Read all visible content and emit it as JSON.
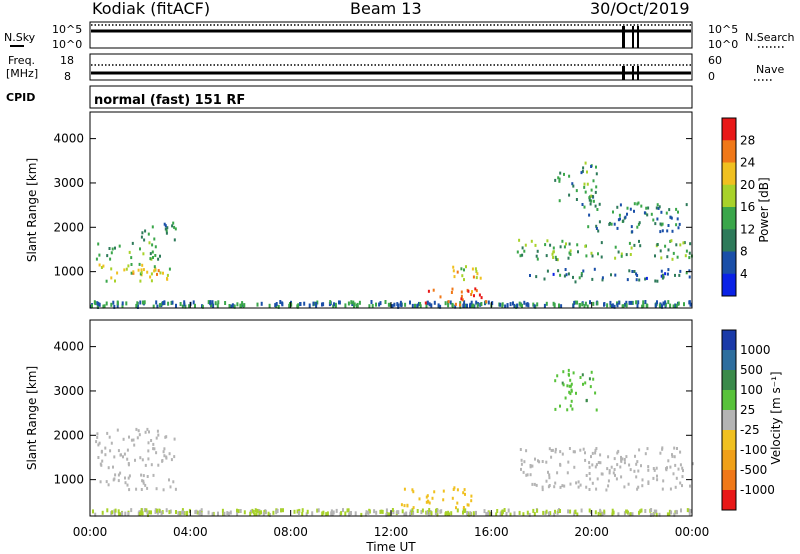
{
  "header": {
    "radar": "Kodiak (fitACF)",
    "beam": "Beam 13",
    "date": "30/Oct/2019"
  },
  "noise_panel": {
    "left_label": "N.Sky",
    "left_top": "10^5",
    "left_bottom": "10^0",
    "right_top": "10^5",
    "right_bottom": "10^0",
    "right_label": "N.Search"
  },
  "freq_panel": {
    "left_label_1": "Freq.",
    "left_label_2": "[MHz]",
    "left_top": "18",
    "left_bottom": "8",
    "right_top": "60",
    "right_bottom": "0",
    "right_label": "Nave"
  },
  "cpid": {
    "label": "CPID",
    "value": "normal (fast) 151 RF"
  },
  "x_axis": {
    "label": "Time UT",
    "ticks": [
      "00:00",
      "04:00",
      "08:00",
      "12:00",
      "16:00",
      "20:00",
      "00:00"
    ]
  },
  "power_panel": {
    "ylabel": "Slant Range [km]",
    "yticks": [
      "1000",
      "2000",
      "3000",
      "4000"
    ],
    "cbar_label": "Power [dB]",
    "cbar_ticks": [
      "4",
      "8",
      "12",
      "16",
      "20",
      "24",
      "28"
    ],
    "cbar_colors": [
      "#0a22e6",
      "#1a4fa8",
      "#2e7a5a",
      "#3aa64a",
      "#a8d22a",
      "#f0c020",
      "#f07818",
      "#e81818"
    ]
  },
  "velocity_panel": {
    "ylabel": "Slant Range [km]",
    "yticks": [
      "1000",
      "2000",
      "3000",
      "4000"
    ],
    "cbar_label": "Velocity [m s⁻¹]",
    "cbar_ticks": [
      "1000",
      "500",
      "100",
      "25",
      "-25",
      "-100",
      "-500",
      "-1000"
    ],
    "cbar_colors": [
      "#1a3aa8",
      "#2e6e9e",
      "#3a8a4a",
      "#58c23a",
      "#b4b4b4",
      "#f0c020",
      "#f0a018",
      "#f07818",
      "#e81818"
    ]
  },
  "chart_data": [
    {
      "type": "heatmap",
      "title": "Power",
      "xlabel": "Time UT",
      "ylabel": "Slant Range [km]",
      "xlim": [
        "00:00",
        "24:00"
      ],
      "ylim": [
        180,
        4600
      ],
      "colorbar": {
        "label": "Power [dB]",
        "range": [
          0,
          32
        ]
      },
      "regions": [
        {
          "t0": 0.2,
          "t1": 2.8,
          "r0": 1300,
          "r1": 1700,
          "value": 14
        },
        {
          "t0": 2.0,
          "t1": 3.4,
          "r0": 1700,
          "r1": 2200,
          "value": 12
        },
        {
          "t0": 0.3,
          "t1": 3.5,
          "r0": 800,
          "r1": 1200,
          "value": 18
        },
        {
          "t0": 1.5,
          "t1": 3.0,
          "r0": 950,
          "r1": 1150,
          "value": 24
        },
        {
          "t0": 13.3,
          "t1": 15.8,
          "r0": 280,
          "r1": 650,
          "value": 28
        },
        {
          "t0": 13.8,
          "t1": 15.6,
          "r0": 850,
          "r1": 1200,
          "value": 20
        },
        {
          "t0": 17.0,
          "t1": 24.0,
          "r0": 1300,
          "r1": 1750,
          "value": 14
        },
        {
          "t0": 17.5,
          "t1": 24.0,
          "r0": 800,
          "r1": 1100,
          "value": 8
        },
        {
          "t0": 18.5,
          "t1": 20.2,
          "r0": 2600,
          "r1": 3500,
          "value": 12
        },
        {
          "t0": 19.5,
          "t1": 23.8,
          "r0": 1900,
          "r1": 2600,
          "value": 10
        }
      ]
    },
    {
      "type": "heatmap",
      "title": "Velocity",
      "xlabel": "Time UT",
      "ylabel": "Slant Range [km]",
      "xlim": [
        "00:00",
        "24:00"
      ],
      "ylim": [
        180,
        4600
      ],
      "colorbar": {
        "label": "Velocity [m s⁻¹]",
        "range": [
          -1000,
          1000
        ]
      },
      "regions": [
        {
          "t0": 0.2,
          "t1": 3.4,
          "r0": 1300,
          "r1": 2200,
          "value": 0
        },
        {
          "t0": 0.3,
          "t1": 3.5,
          "r0": 800,
          "r1": 1200,
          "value": 0
        },
        {
          "t0": 12.3,
          "t1": 15.2,
          "r0": 400,
          "r1": 850,
          "value": -200
        },
        {
          "t0": 17.0,
          "t1": 24.0,
          "r0": 800,
          "r1": 1750,
          "value": 0
        },
        {
          "t0": 18.5,
          "t1": 20.2,
          "r0": 2600,
          "r1": 3500,
          "value": 300
        }
      ]
    }
  ]
}
